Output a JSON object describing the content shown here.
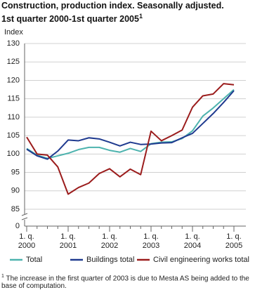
{
  "chart_data": {
    "type": "line",
    "title": [
      "Construction, production index. Seasonally adjusted.",
      "1st quarter 2000-1st quarter 2005"
    ],
    "title_note_marker": "1",
    "y_axis_label": "Index",
    "categories": [
      "1. q. 2000",
      null,
      null,
      null,
      "1. q. 2001",
      null,
      null,
      null,
      "1. q. 2002",
      null,
      null,
      null,
      "1. q. 2003",
      null,
      null,
      null,
      "1. q. 2004",
      null,
      null,
      null,
      "1. q. 2005"
    ],
    "series": [
      {
        "name": "Total",
        "color": "#4db3ae",
        "values": [
          101.5,
          99.7,
          98.8,
          99.5,
          100.2,
          101.2,
          101.8,
          101.8,
          101.0,
          100.5,
          101.5,
          100.7,
          102.8,
          103.2,
          103.3,
          104.2,
          106.3,
          110.3,
          112.5,
          115.0,
          117.5
        ]
      },
      {
        "name": "Buildings total",
        "color": "#1f3a8f",
        "values": [
          101.3,
          99.5,
          98.6,
          100.8,
          103.8,
          103.6,
          104.4,
          104.1,
          103.2,
          102.2,
          103.2,
          102.6,
          102.7,
          103.0,
          103.1,
          104.4,
          105.6,
          108.3,
          111.0,
          114.0,
          117.2
        ]
      },
      {
        "name": "Civil engineering works total",
        "color": "#9b1c1c",
        "values": [
          104.6,
          100.0,
          99.7,
          96.5,
          89.1,
          90.9,
          92.1,
          94.7,
          96.0,
          93.8,
          95.9,
          94.4,
          106.2,
          103.6,
          105.0,
          106.5,
          112.7,
          115.8,
          116.3,
          119.1,
          118.8
        ]
      }
    ],
    "ylim": [
      85,
      130
    ],
    "yticks": [
      0,
      85,
      90,
      95,
      100,
      105,
      110,
      115,
      120,
      125,
      130
    ],
    "axis_break": true,
    "grid": true,
    "legend": "bottom",
    "footnote": {
      "marker": "1",
      "text": "The increase in the first quarter of 2003 is due to Mesta AS being added to the base of computation."
    }
  }
}
